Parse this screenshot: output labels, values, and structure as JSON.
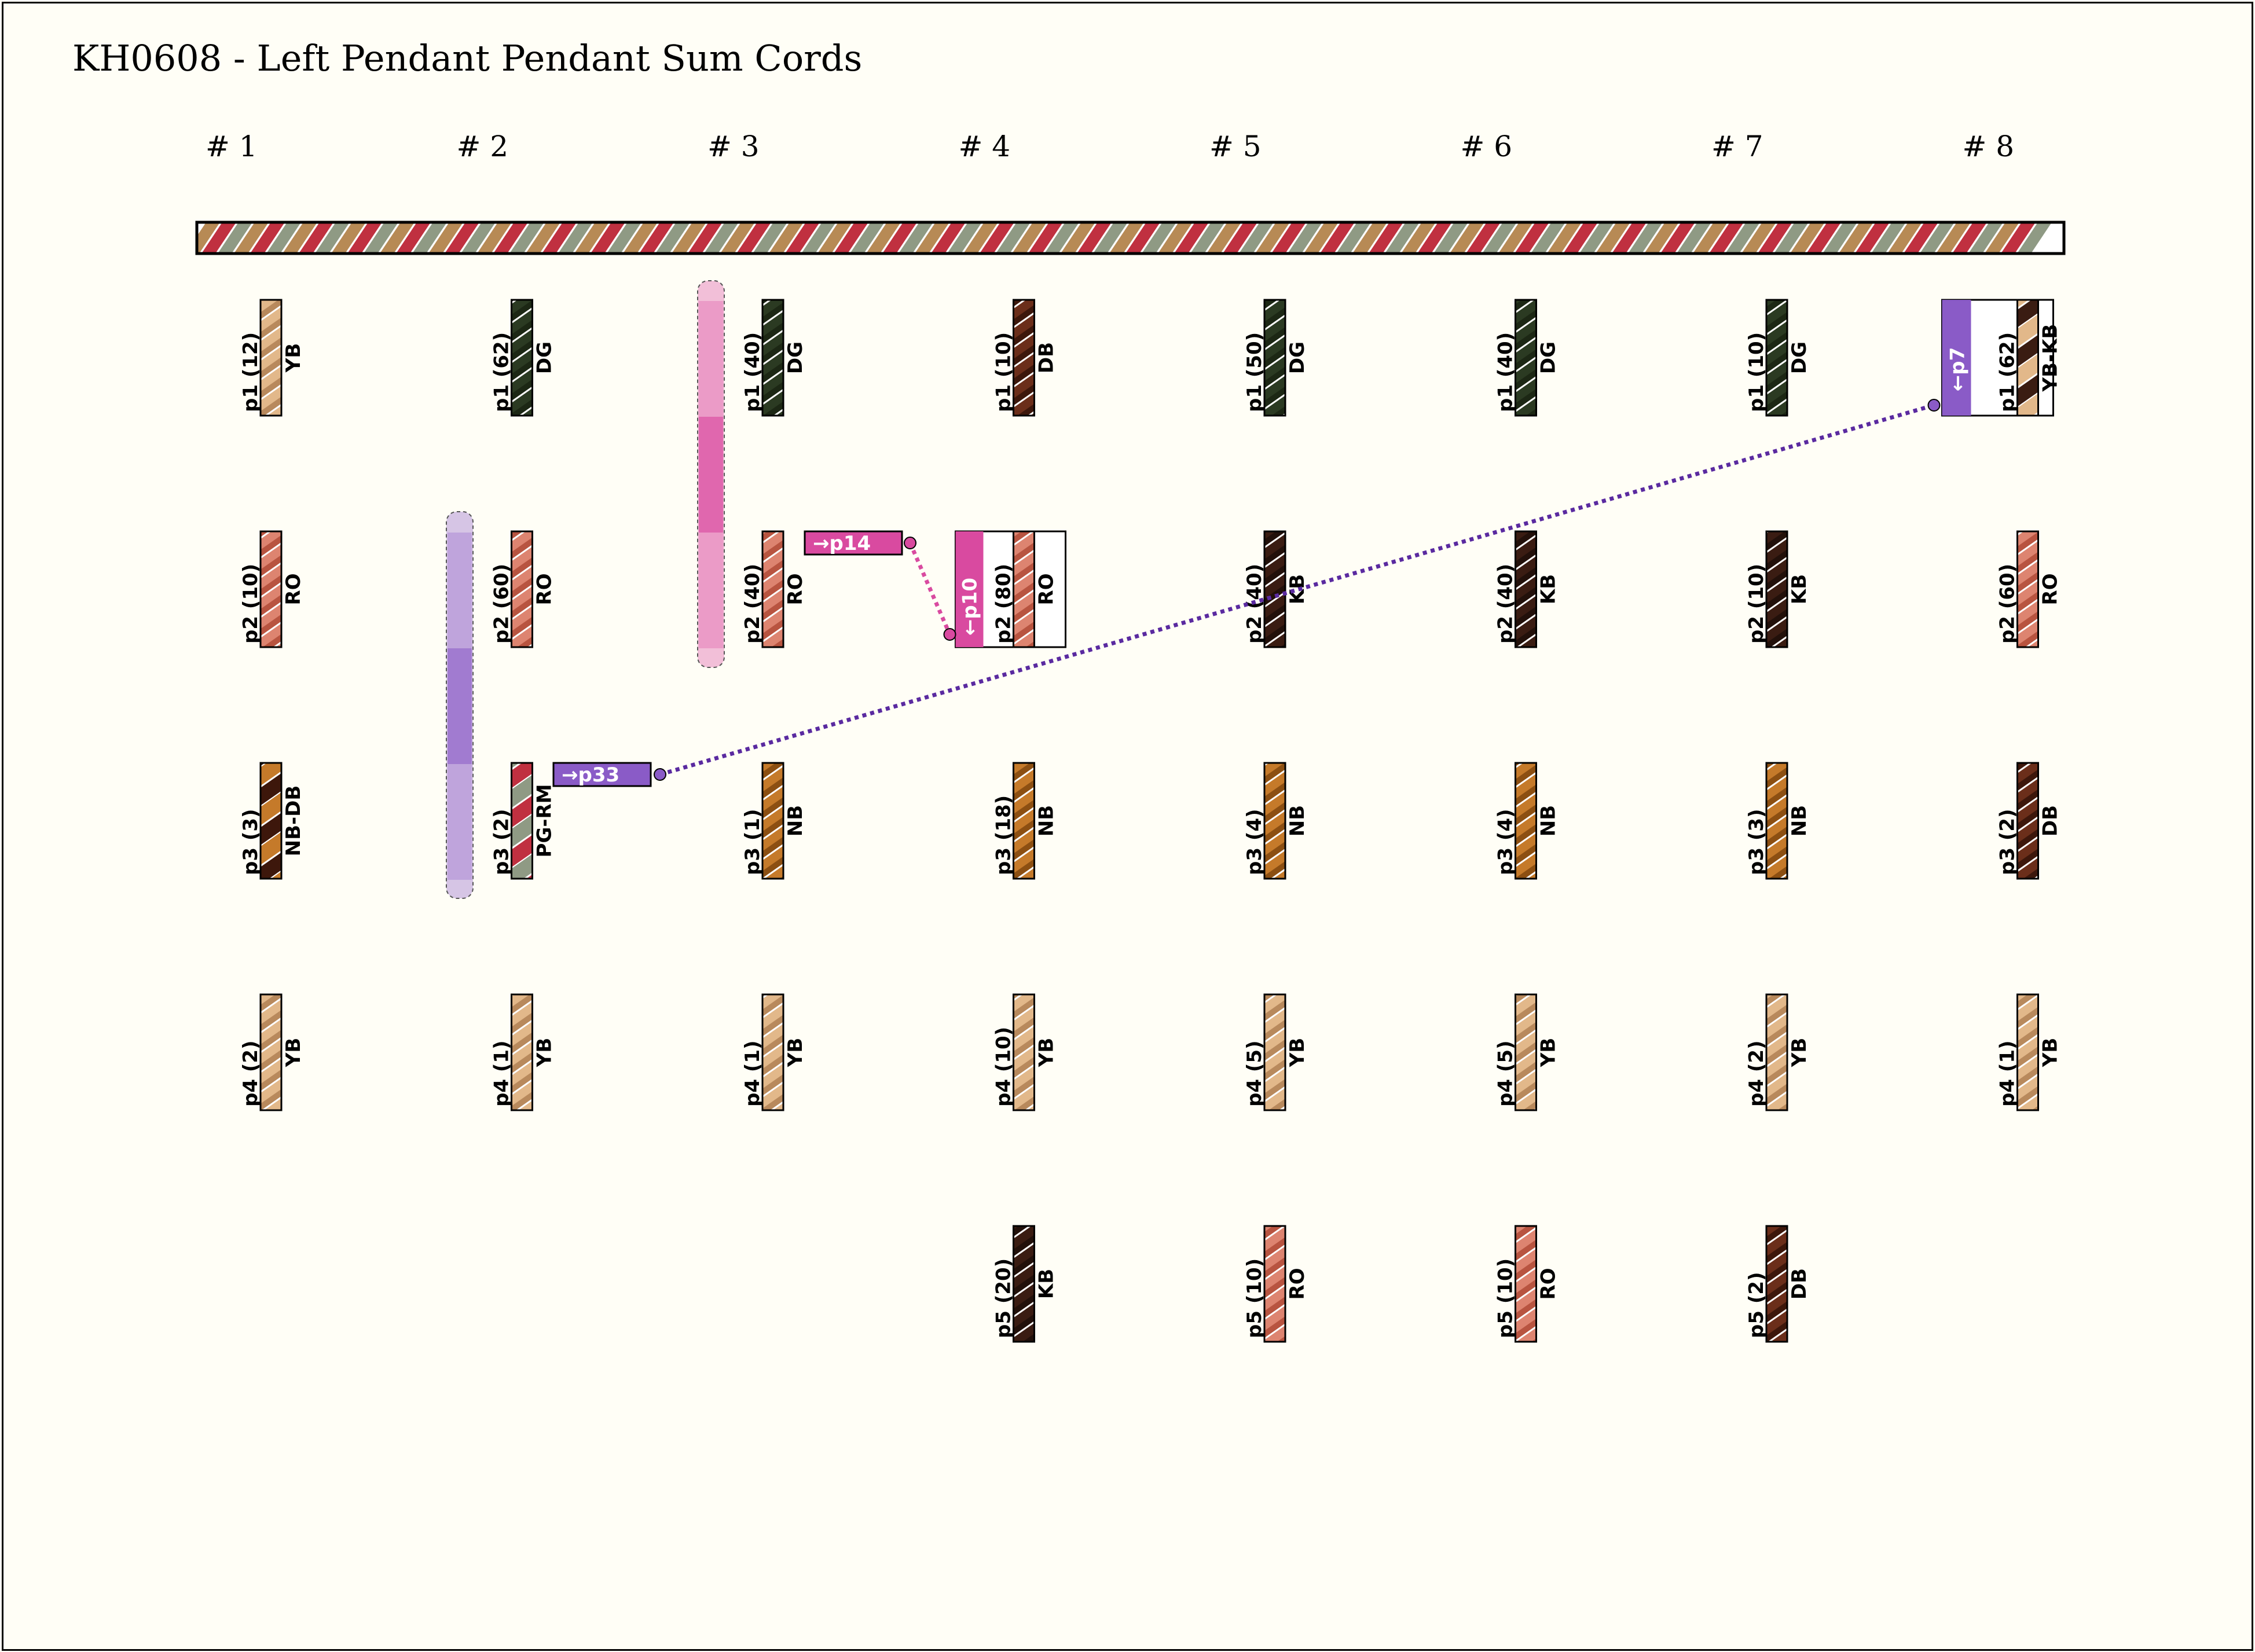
{
  "title": "KH0608 - Left Pendant Pendant Sum Cords",
  "headers": [
    "# 1",
    "# 2",
    "# 3",
    "# 4",
    "# 5",
    "# 6",
    "# 7",
    "# 8"
  ],
  "colors": {
    "YB": [
      "#e2b88a",
      "#b8895c"
    ],
    "DG": [
      "#2b3a22",
      "#1c2714"
    ],
    "DB": [
      "#6b2e1a",
      "#3d170b"
    ],
    "KB": [
      "#3a1c12",
      "#22100a"
    ],
    "RO": [
      "#dd8470",
      "#b85440"
    ],
    "NB": [
      "#c57a2a",
      "#8c4f12"
    ],
    "PG": "#8f9a84",
    "RM": "#c03040",
    "MP": "#b78a55",
    "PINK": "#d94aa0",
    "PURPLE": "#8a5bc7",
    "LINK_PURPLE": "#5a2aa0"
  },
  "main_cord_colors": [
    "MP",
    "RM",
    "PG"
  ],
  "columns": [
    {
      "cords": [
        {
          "label": "p1 (12)",
          "color": "YB",
          "color_label": "YB"
        },
        {
          "label": "p2 (10)",
          "color": "RO",
          "color_label": "RO"
        },
        {
          "label": "p3 (3)",
          "color": "NB-DB",
          "color_label": "NB-DB"
        },
        {
          "label": "p4 (2)",
          "color": "YB",
          "color_label": "YB"
        }
      ]
    },
    {
      "cords": [
        {
          "label": "p1 (62)",
          "color": "DG",
          "color_label": "DG"
        },
        {
          "label": "p2 (60)",
          "color": "RO",
          "color_label": "RO"
        },
        {
          "label": "p3 (2)",
          "color": "PG-RM",
          "color_label": "PG-RM"
        },
        {
          "label": "p4 (1)",
          "color": "YB",
          "color_label": "YB"
        }
      ]
    },
    {
      "cords": [
        {
          "label": "p1 (40)",
          "color": "DG",
          "color_label": "DG"
        },
        {
          "label": "p2 (40)",
          "color": "RO",
          "color_label": "RO"
        },
        {
          "label": "p3 (1)",
          "color": "NB",
          "color_label": "NB"
        },
        {
          "label": "p4 (1)",
          "color": "YB",
          "color_label": "YB"
        }
      ]
    },
    {
      "cords": [
        {
          "label": "p1 (10)",
          "color": "DB",
          "color_label": "DB"
        },
        {
          "label": "p2 (80)",
          "color": "RO",
          "color_label": "RO"
        },
        {
          "label": "p3 (18)",
          "color": "NB",
          "color_label": "NB"
        },
        {
          "label": "p4 (10)",
          "color": "YB",
          "color_label": "YB"
        },
        {
          "label": "p5 (20)",
          "color": "KB",
          "color_label": "KB"
        }
      ]
    },
    {
      "cords": [
        {
          "label": "p1 (50)",
          "color": "DG",
          "color_label": "DG"
        },
        {
          "label": "p2 (40)",
          "color": "KB",
          "color_label": "KB"
        },
        {
          "label": "p3 (4)",
          "color": "NB",
          "color_label": "NB"
        },
        {
          "label": "p4 (5)",
          "color": "YB",
          "color_label": "YB"
        },
        {
          "label": "p5 (10)",
          "color": "RO",
          "color_label": "RO"
        }
      ]
    },
    {
      "cords": [
        {
          "label": "p1 (40)",
          "color": "DG",
          "color_label": "DG"
        },
        {
          "label": "p2 (40)",
          "color": "KB",
          "color_label": "KB"
        },
        {
          "label": "p3 (4)",
          "color": "NB",
          "color_label": "NB"
        },
        {
          "label": "p4 (5)",
          "color": "YB",
          "color_label": "YB"
        },
        {
          "label": "p5 (10)",
          "color": "RO",
          "color_label": "RO"
        }
      ]
    },
    {
      "cords": [
        {
          "label": "p1 (10)",
          "color": "DG",
          "color_label": "DG"
        },
        {
          "label": "p2 (10)",
          "color": "KB",
          "color_label": "KB"
        },
        {
          "label": "p3 (3)",
          "color": "NB",
          "color_label": "NB"
        },
        {
          "label": "p4 (2)",
          "color": "YB",
          "color_label": "YB"
        },
        {
          "label": "p5 (2)",
          "color": "DB",
          "color_label": "DB"
        }
      ]
    },
    {
      "cords": [
        {
          "label": "p1 (62)",
          "color": "YB-KB",
          "color_label": "YB-KB"
        },
        {
          "label": "p2 (60)",
          "color": "RO",
          "color_label": "RO"
        },
        {
          "label": "p3 (2)",
          "color": "DB",
          "color_label": "DB"
        },
        {
          "label": "p4 (1)",
          "color": "YB",
          "color_label": "YB"
        }
      ]
    }
  ],
  "sum_tags": {
    "to_p14": "→p14",
    "from_p10": "←p10",
    "to_p33": "→p33",
    "from_p7": "←p7"
  }
}
